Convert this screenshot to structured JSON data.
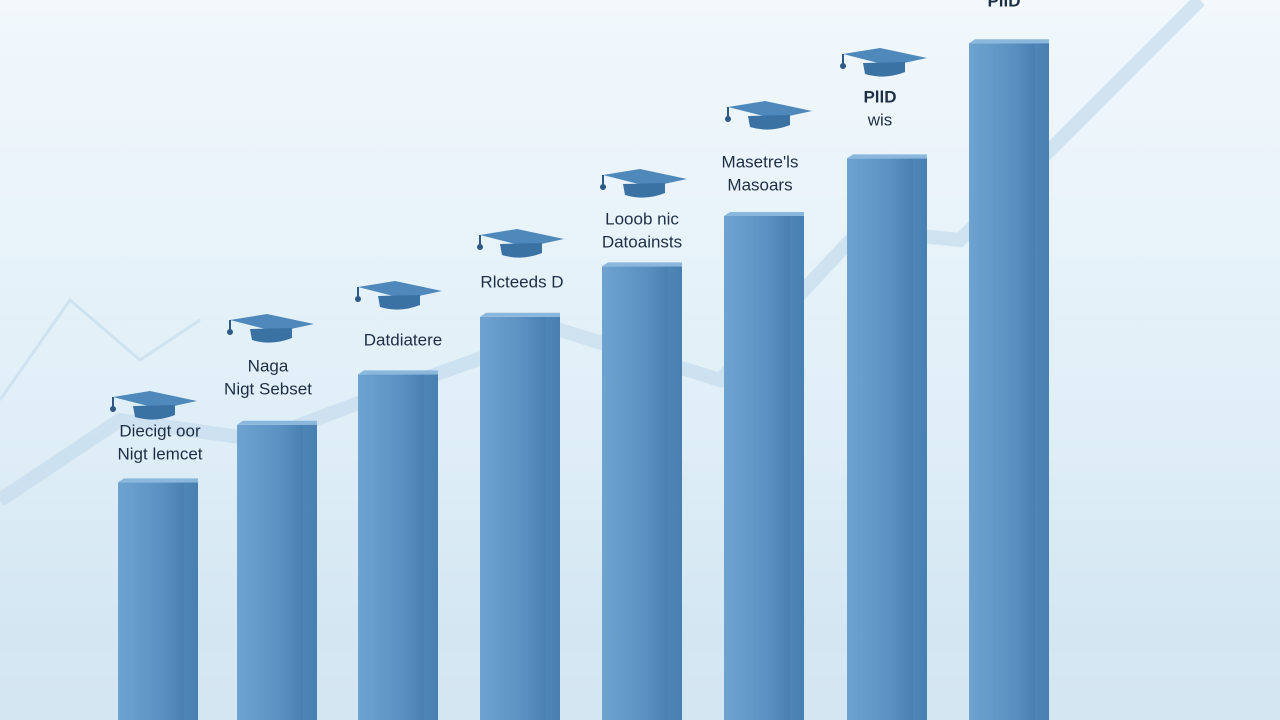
{
  "chart_data": {
    "type": "bar",
    "categories": [
      [
        "Diecigt oor",
        "Nigt lemcet"
      ],
      [
        "Naga",
        "Nigt Sebset"
      ],
      [
        "Datdiatere"
      ],
      [
        "Rlcteeds D"
      ],
      [
        "Looob nic",
        "Datoainsts"
      ],
      [
        "Masetre'ls",
        "Masoars"
      ],
      [
        "PllD",
        "wis"
      ],
      [
        "PllD"
      ]
    ],
    "values": [
      33,
      41,
      48,
      56,
      63,
      70,
      78,
      94
    ],
    "ylim": [
      0,
      100
    ],
    "color": "#5a91c2"
  }
}
